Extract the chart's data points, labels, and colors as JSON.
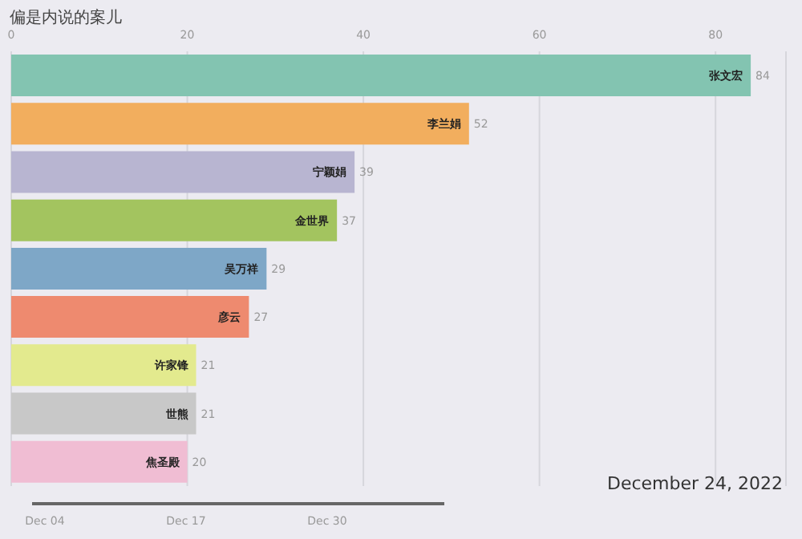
{
  "chart_data": {
    "type": "bar",
    "orientation": "horizontal",
    "title": "偏是内说的案儿",
    "categories": [
      "张文宏",
      "李兰娟",
      "宁颖娟",
      "金世界",
      "吴万祥",
      "彦云",
      "许家锋",
      "世熊",
      "焦圣殿"
    ],
    "values": [
      84,
      52,
      39,
      37,
      29,
      27,
      21,
      21,
      20
    ],
    "colors": [
      "#83c4b1",
      "#f2ae5e",
      "#b8b5d1",
      "#a3c45f",
      "#7ea7c7",
      "#ee8a6f",
      "#e3ea8e",
      "#c8c8c8",
      "#f0bdd3"
    ],
    "xlim": [
      0,
      88
    ],
    "xticks": [
      0,
      20,
      40,
      60,
      80
    ],
    "grid": "x",
    "data_labels": true,
    "annotations": [
      "December 24, 2022",
      "Dec 04",
      "Dec 17",
      "Dec 30"
    ]
  }
}
